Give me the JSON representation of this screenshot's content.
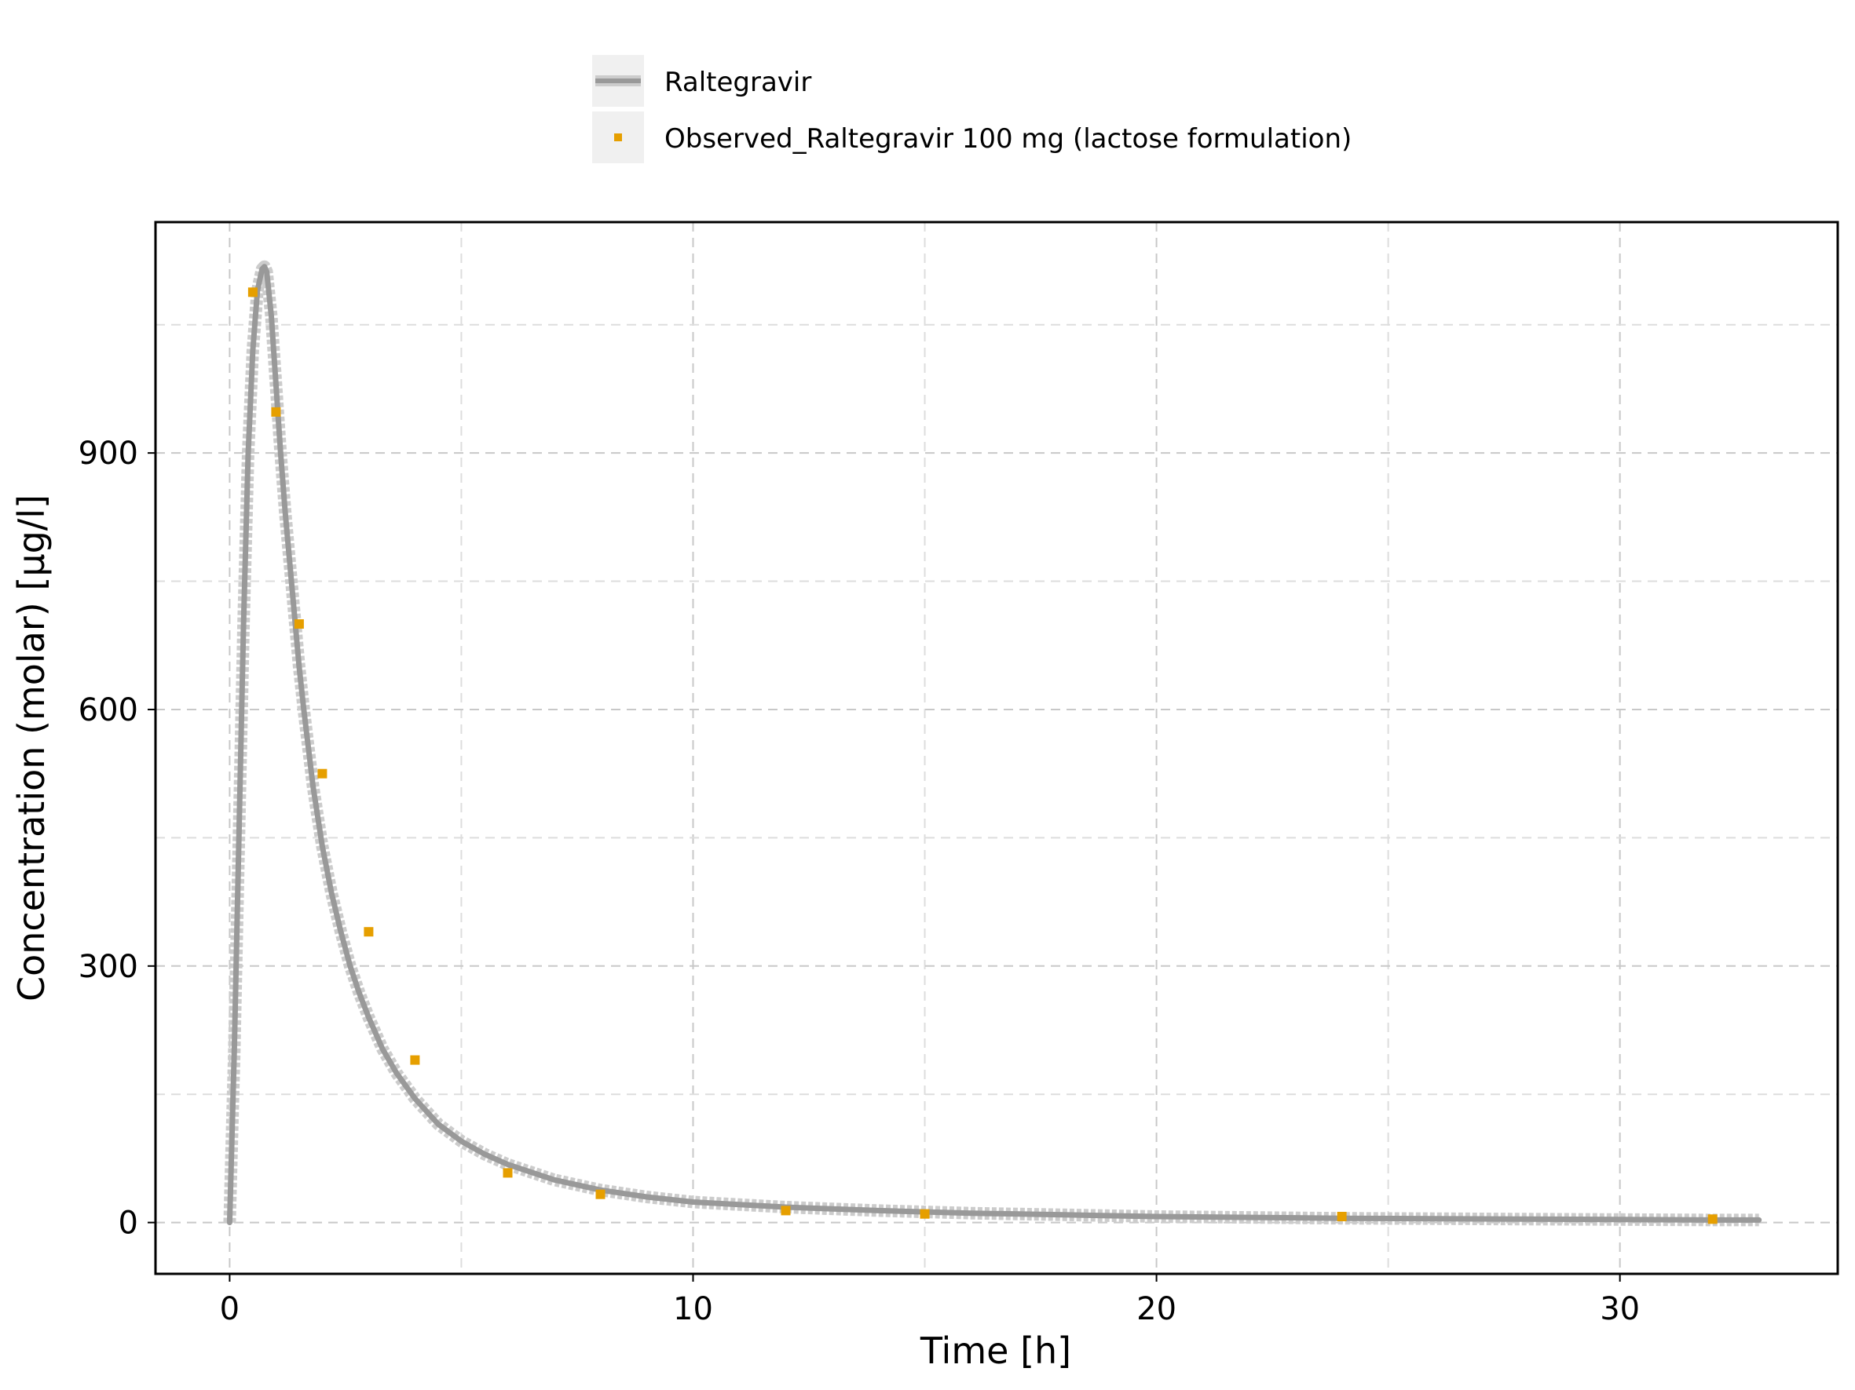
{
  "chart_data": {
    "type": "line",
    "title": "",
    "xlabel": "Time [h]",
    "ylabel": "Concentration (molar) [µg/l]",
    "xlim": [
      -1.6,
      34.7
    ],
    "ylim": [
      -60,
      1170
    ],
    "x_ticks": [
      0,
      10,
      20,
      30
    ],
    "x_tick_labels": [
      "0",
      "10",
      "20",
      "30"
    ],
    "x_minor_grid": [
      5,
      15,
      25
    ],
    "y_ticks": [
      0,
      300,
      600,
      900
    ],
    "y_tick_labels": [
      "0",
      "300",
      "600",
      "900"
    ],
    "y_minor_grid": [
      150,
      450,
      750,
      1050
    ],
    "grid": true,
    "legend_position": "top-center",
    "colors": {
      "simulated": "#999999",
      "simulated_band": "#cccccc",
      "observed": "#E69F00",
      "legend_bg": "#f0f0f0"
    },
    "series": [
      {
        "name": "Raltegravir",
        "kind": "line",
        "x": [
          0,
          0.1,
          0.2,
          0.3,
          0.4,
          0.5,
          0.6,
          0.7,
          0.75,
          0.8,
          0.9,
          1.0,
          1.1,
          1.2,
          1.3,
          1.4,
          1.5,
          1.6,
          1.7,
          1.8,
          1.9,
          2.0,
          2.2,
          2.4,
          2.6,
          2.8,
          3.0,
          3.3,
          3.6,
          4.0,
          4.5,
          5.0,
          5.5,
          6.0,
          7.0,
          8.0,
          9.0,
          10.0,
          12.0,
          14.0,
          16.0,
          18.0,
          20.0,
          22.0,
          24.0,
          26.0,
          28.0,
          30.0,
          32.0,
          33.0
        ],
        "y": [
          0,
          200,
          450,
          700,
          900,
          1020,
          1090,
          1115,
          1118,
          1112,
          1060,
          980,
          900,
          830,
          770,
          710,
          650,
          600,
          555,
          510,
          475,
          440,
          385,
          340,
          300,
          268,
          240,
          203,
          175,
          145,
          115,
          95,
          80,
          68,
          50,
          38,
          30,
          24,
          18,
          14,
          11,
          9,
          7,
          6,
          5,
          4.5,
          4,
          3.5,
          3,
          3
        ],
        "band_offset": 10
      },
      {
        "name": "Observed_Raltegravir 100 mg (lactose formulation)",
        "kind": "scatter",
        "x": [
          0.5,
          1.0,
          1.5,
          2.0,
          3.0,
          4.0,
          6.0,
          8.0,
          12.0,
          15.0,
          24.0,
          32.0
        ],
        "y": [
          1088,
          948,
          700,
          525,
          340,
          190,
          58,
          33,
          14,
          10,
          7,
          4
        ]
      }
    ]
  }
}
